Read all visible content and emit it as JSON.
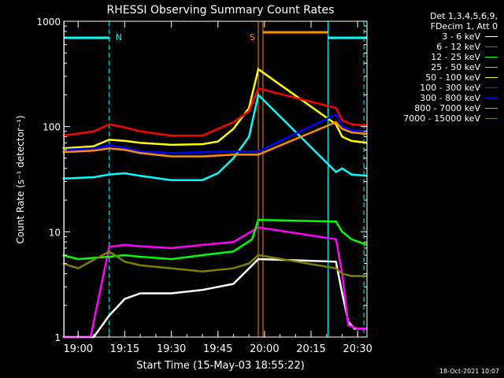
{
  "chart_data": {
    "type": "line",
    "title": "RHESSI Observing Summary Count Rates",
    "xlabel": "Start Time (15-May-03 18:55:22)",
    "ylabel": "Count Rate (s⁻¹ detector⁻¹)",
    "y_scale": "log",
    "ylim": [
      1,
      1000
    ],
    "xlim": [
      "18:55:22",
      "20:33:00"
    ],
    "x_tick_labels": [
      "19:00",
      "19:15",
      "19:30",
      "19:45",
      "20:00",
      "20:15",
      "20:30"
    ],
    "y_tick_labels": [
      "1",
      "10",
      "100",
      "1000"
    ],
    "grid": false,
    "legend_position": "right",
    "legend_header": [
      "Det 1,3,4,5,6,9,",
      "FDecim 1, Att 0"
    ],
    "annotations": [
      {
        "text": "N",
        "x": "19:10",
        "color": "#00ffff"
      },
      {
        "text": "S",
        "x": "19:58",
        "color": "#ff8c00"
      }
    ],
    "series": [
      {
        "name": "3 - 6 keV",
        "color": "#ffffff",
        "x": [
          "18:55",
          "19:05",
          "19:10",
          "19:15",
          "19:20",
          "19:30",
          "19:40",
          "19:50",
          "19:58",
          "20:23",
          "20:25",
          "20:27",
          "20:29",
          "20:31",
          "20:33"
        ],
        "y": [
          1,
          1,
          1.6,
          2.3,
          2.6,
          2.6,
          2.8,
          3.2,
          5.5,
          5.2,
          2.6,
          1.4,
          1.2,
          1.2,
          1.2
        ]
      },
      {
        "name": "6 - 12 keV",
        "color": "#ff00ff",
        "x": [
          "18:55",
          "19:04",
          "19:10",
          "19:15",
          "19:20",
          "19:30",
          "19:40",
          "19:50",
          "19:58",
          "20:23",
          "20:25",
          "20:27",
          "20:30",
          "20:33"
        ],
        "y": [
          1,
          1,
          7.2,
          7.5,
          7.3,
          7.0,
          7.5,
          8.0,
          11,
          8.5,
          4.0,
          1.3,
          1.2,
          1.2
        ]
      },
      {
        "name": "12 - 25 keV",
        "color": "#00ff00",
        "x": [
          "18:55",
          "19:00",
          "19:10",
          "19:15",
          "19:20",
          "19:30",
          "19:40",
          "19:50",
          "19:56",
          "19:58",
          "20:23",
          "20:25",
          "20:28",
          "20:33"
        ],
        "y": [
          6.0,
          5.5,
          5.8,
          6.0,
          5.8,
          5.5,
          6.0,
          6.5,
          8.5,
          13,
          12.5,
          10,
          8.5,
          7.5
        ]
      },
      {
        "name": "25 - 50 keV",
        "color": "#00ffff",
        "x": [
          "18:55",
          "19:05",
          "19:10",
          "19:15",
          "19:20",
          "19:30",
          "19:40",
          "19:45",
          "19:50",
          "19:55",
          "19:58",
          "20:23",
          "20:25",
          "20:28",
          "20:33"
        ],
        "y": [
          32,
          33,
          35,
          36,
          34,
          31,
          31,
          36,
          50,
          80,
          200,
          37,
          40,
          35,
          34
        ]
      },
      {
        "name": "50 - 100 keV",
        "color": "#ffff00",
        "x": [
          "18:55",
          "19:05",
          "19:10",
          "19:15",
          "19:20",
          "19:30",
          "19:40",
          "19:45",
          "19:50",
          "19:55",
          "19:58",
          "20:23",
          "20:25",
          "20:28",
          "20:33"
        ],
        "y": [
          62,
          65,
          75,
          73,
          70,
          67,
          68,
          72,
          95,
          150,
          350,
          105,
          80,
          73,
          70
        ]
      },
      {
        "name": "100 - 300 keV",
        "color": "#ff0000",
        "x": [
          "18:55",
          "19:05",
          "19:10",
          "19:15",
          "19:20",
          "19:30",
          "19:40",
          "19:45",
          "19:50",
          "19:55",
          "19:58",
          "20:23",
          "20:25",
          "20:28",
          "20:33"
        ],
        "y": [
          82,
          90,
          105,
          98,
          90,
          82,
          82,
          95,
          110,
          140,
          230,
          150,
          115,
          105,
          102
        ]
      },
      {
        "name": "300 - 800 keV",
        "color": "#0000ff",
        "x": [
          "18:55",
          "19:05",
          "19:10",
          "19:15",
          "19:20",
          "19:30",
          "19:40",
          "19:50",
          "19:58",
          "20:23",
          "20:25",
          "20:28",
          "20:33"
        ],
        "y": [
          60,
          62,
          66,
          63,
          58,
          56,
          57,
          58,
          58,
          130,
          100,
          92,
          90
        ]
      },
      {
        "name": "800 - 7000 keV",
        "color": "#ff8c00",
        "x": [
          "18:55",
          "19:05",
          "19:10",
          "19:15",
          "19:20",
          "19:30",
          "19:40",
          "19:50",
          "19:58",
          "20:23",
          "20:25",
          "20:28",
          "20:33"
        ],
        "y": [
          57,
          59,
          62,
          60,
          56,
          52,
          52,
          54,
          54,
          110,
          95,
          88,
          85
        ]
      },
      {
        "name": "7000 - 15000 keV",
        "color": "#808000",
        "x": [
          "18:55",
          "19:00",
          "19:10",
          "19:15",
          "19:20",
          "19:30",
          "19:40",
          "19:50",
          "19:55",
          "19:58",
          "20:23",
          "20:25",
          "20:28",
          "20:33"
        ],
        "y": [
          5.0,
          4.5,
          6.5,
          5.2,
          4.8,
          4.5,
          4.2,
          4.5,
          5.0,
          6.0,
          4.5,
          4.0,
          3.8,
          3.8
        ]
      }
    ]
  },
  "legend": {
    "header_line1": "Det 1,3,4,5,6,9,",
    "header_line2": "FDecim 1, Att 0"
  },
  "footer": {
    "timestamp": "18-Oct-2021 10:07"
  }
}
